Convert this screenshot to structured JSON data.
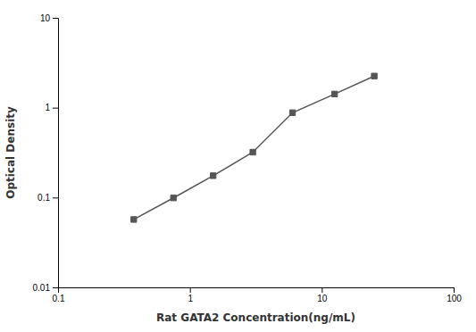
{
  "chart_data": {
    "type": "line",
    "xlabel": "Rat GATA2 Concentration(ng/mL)",
    "ylabel": "Optical Density",
    "x": [
      0.375,
      0.75,
      1.5,
      3.0,
      6.0,
      12.5,
      25.0
    ],
    "values": [
      0.057,
      0.099,
      0.175,
      0.32,
      0.88,
      1.42,
      2.25
    ],
    "xlim": [
      0.1,
      100
    ],
    "ylim": [
      0.01,
      10
    ],
    "xticks": [
      0.1,
      1,
      10,
      100
    ],
    "yticks": [
      0.01,
      0.1,
      1,
      10
    ],
    "log": true,
    "grid": false,
    "color": "#555555",
    "marker": "square"
  }
}
